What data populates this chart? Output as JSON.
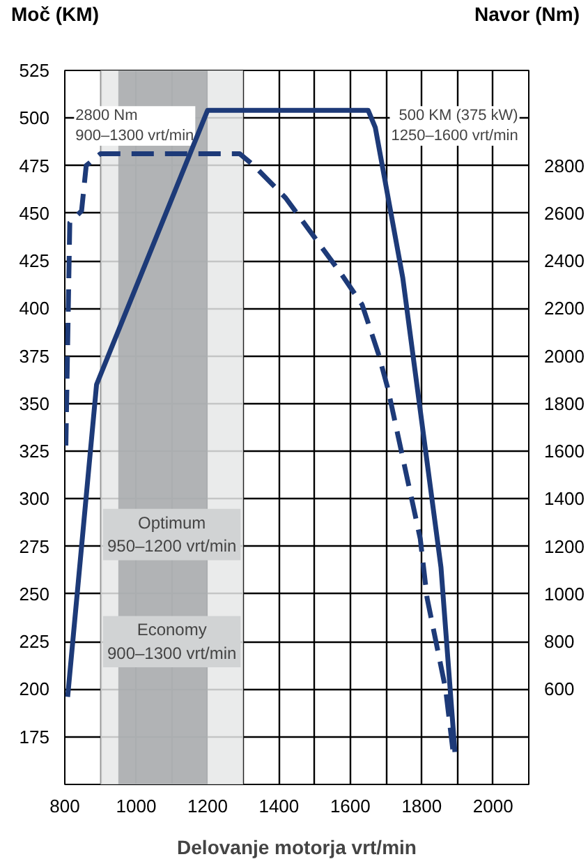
{
  "chart_data": {
    "type": "line",
    "xlabel": "Delovanje motorja vrt/min",
    "ylabel": "Moč (KM)",
    "y2label": "Navor (Nm)",
    "xlim": [
      800,
      2100
    ],
    "xticks": [
      800,
      1000,
      1200,
      1400,
      1600,
      1800,
      2000
    ],
    "ylim": [
      150,
      525
    ],
    "yticks": [
      175,
      200,
      225,
      250,
      275,
      300,
      325,
      350,
      375,
      400,
      425,
      450,
      475,
      500,
      525
    ],
    "y2lim": [
      200,
      3200
    ],
    "y2ticks": [
      600,
      800,
      1000,
      1200,
      1400,
      1600,
      1800,
      2000,
      2200,
      2400,
      2600,
      2800
    ],
    "grid": true,
    "series": [
      {
        "color": "#1d3a78",
        "line_style": "solid",
        "x": [
          808,
          889,
          1200,
          1650,
          1670,
          1747,
          1854,
          1893
        ],
        "values": [
          196,
          360,
          504,
          504,
          495,
          416,
          264,
          167
        ]
      },
      {
        "color": "#1d3a78",
        "line_style": "dashed",
        "axis": "y2",
        "x": [
          803,
          814,
          847,
          860,
          900,
          1290,
          1330,
          1419,
          1575,
          1633,
          1679,
          1705,
          1796,
          1815,
          1867,
          1887
        ],
        "values": [
          1624,
          2560,
          2610,
          2800,
          2850,
          2850,
          2800,
          2664,
          2344,
          2216,
          2008,
          1864,
          1232,
          984,
          600,
          348
        ]
      }
    ],
    "bands": [
      {
        "axis": "x",
        "from": 900,
        "to": 1300,
        "label": "Economy\n900–1300 vrt/min",
        "color": "#e6e7e8"
      },
      {
        "axis": "x",
        "from": 950,
        "to": 1200,
        "label": "Optimum\n950–1200 vrt/min",
        "color": "#a7a9ac"
      }
    ],
    "annotations": [
      "2800 Nm\n900–1300 vrt/min",
      "500 KM (375 kW)\n1250–1600 vrt/min"
    ]
  }
}
